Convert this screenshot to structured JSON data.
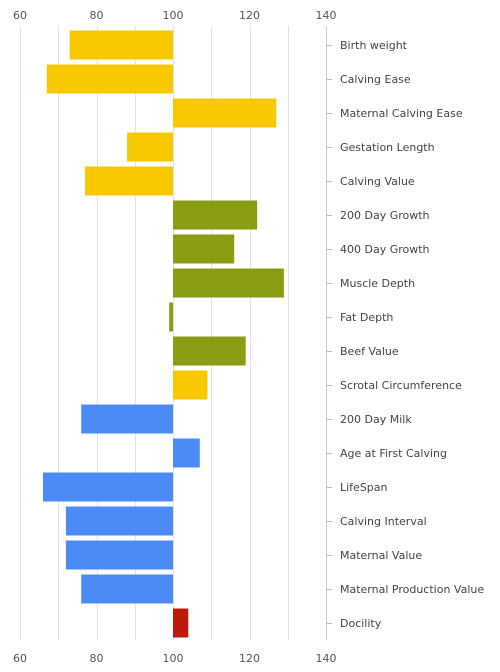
{
  "chart_data": {
    "type": "bar",
    "orientation": "horizontal",
    "baseline": 100,
    "xlim": [
      60,
      140
    ],
    "xticks": [
      60,
      80,
      100,
      120,
      140
    ],
    "grid": true,
    "legend": "none",
    "categories": [
      "Birth weight",
      "Calving Ease",
      "Maternal Calving Ease",
      "Gestation Length",
      "Calving Value",
      "200 Day Growth",
      "400 Day Growth",
      "Muscle Depth",
      "Fat Depth",
      "Beef Value",
      "Scrotal Circumference",
      "200 Day Milk",
      "Age at First Calving",
      "LifeSpan",
      "Calving Interval",
      "Maternal Value",
      "Maternal Production Value",
      "Docility"
    ],
    "values": [
      73,
      67,
      127,
      88,
      77,
      122,
      116,
      129,
      99,
      119,
      109,
      76,
      107,
      66,
      72,
      72,
      76,
      104
    ],
    "colors": [
      "#f8c800",
      "#f8c800",
      "#f8c800",
      "#f8c800",
      "#f8c800",
      "#8b9b12",
      "#8b9b12",
      "#8b9b12",
      "#8b9b12",
      "#8b9b12",
      "#f8c800",
      "#4c8bf5",
      "#4c8bf5",
      "#4c8bf5",
      "#4c8bf5",
      "#4c8bf5",
      "#4c8bf5",
      "#bb1a0d"
    ]
  }
}
